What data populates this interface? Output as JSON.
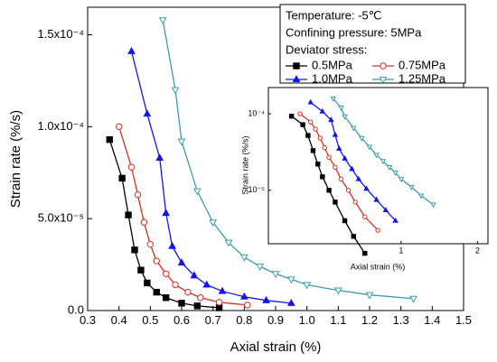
{
  "chart_data": [
    {
      "type": "line",
      "xlabel": "Axial strain (%)",
      "ylabel": "Strain rate (%/s)",
      "xlim": [
        0.3,
        1.5
      ],
      "xticks": [
        0.3,
        0.4,
        0.5,
        0.6,
        0.7,
        0.8,
        0.9,
        {
          "value": 1,
          "label": "1.0"
        },
        1.1,
        1.2,
        1.3,
        1.4,
        1.5
      ],
      "ylim": [
        0,
        0.000165
      ],
      "yticks": [
        {
          "value": 0,
          "label": "0.0"
        },
        {
          "value": 5e-05,
          "label": "5.0x10⁻⁵"
        },
        {
          "value": 0.0001,
          "label": "1.0x10⁻⁴"
        },
        {
          "value": 0.00015,
          "label": "1.5x10⁻⁴"
        }
      ],
      "legend_title": [
        "Temperature: -5℃",
        "Confining pressure: 5MPa",
        "Deviator stress:"
      ],
      "legend": "upper right",
      "series": [
        {
          "name": "0.5MPa",
          "color": "#000000",
          "marker": "square",
          "filled": true,
          "x": [
            0.37,
            0.41,
            0.43,
            0.45,
            0.47,
            0.49,
            0.52,
            0.55,
            0.6,
            0.65,
            0.72
          ],
          "values": [
            9.3e-05,
            7.2e-05,
            5.2e-05,
            3.3e-05,
            2.2e-05,
            1.5e-05,
            1e-05,
            7e-06,
            4e-06,
            2.5e-06,
            1.5e-06
          ]
        },
        {
          "name": "0.75MPa",
          "color": "#d0301e",
          "marker": "circle",
          "filled": false,
          "x": [
            0.4,
            0.44,
            0.46,
            0.48,
            0.5,
            0.52,
            0.55,
            0.58,
            0.62,
            0.66,
            0.72,
            0.81
          ],
          "values": [
            0.0001,
            7.8e-05,
            6.3e-05,
            4.8e-05,
            3.6e-05,
            2.7e-05,
            2e-05,
            1.4e-05,
            1e-05,
            7e-06,
            4.5e-06,
            3e-06
          ]
        },
        {
          "name": "1.0MPa",
          "color": "#1414f0",
          "marker": "triangle",
          "filled": true,
          "x": [
            0.44,
            0.49,
            0.53,
            0.55,
            0.57,
            0.6,
            0.64,
            0.68,
            0.73,
            0.8,
            0.87,
            0.95
          ],
          "values": [
            0.000141,
            0.000107,
            8.3e-05,
            5.3e-05,
            3.5e-05,
            2.6e-05,
            1.9e-05,
            1.4e-05,
            1.05e-05,
            7.5e-06,
            5.5e-06,
            4e-06
          ]
        },
        {
          "name": "1.25MPa",
          "color": "#3a9ea6",
          "marker": "triangle-down",
          "filled": false,
          "x": [
            0.54,
            0.58,
            0.6,
            0.65,
            0.7,
            0.75,
            0.8,
            0.85,
            0.9,
            0.95,
            1.0,
            1.1,
            1.2,
            1.34
          ],
          "values": [
            0.000158,
            0.00012,
            9.2e-05,
            6.5e-05,
            4.8e-05,
            3.7e-05,
            2.9e-05,
            2.4e-05,
            2e-05,
            1.7e-05,
            1.4e-05,
            1.1e-05,
            8.5e-06,
            6.5e-06
          ]
        }
      ]
    },
    {
      "type": "line",
      "xscale": "log",
      "yscale": "log",
      "xlabel": "Axial strain (%)",
      "ylabel": "Strain rate (%/s)",
      "xlim": [
        0.3,
        2.2
      ],
      "xticks": [
        1,
        2
      ],
      "ylim": [
        2e-06,
        0.00022
      ],
      "yticks": [
        {
          "value": 0.0001,
          "label": "10⁻⁴"
        },
        {
          "value": 1e-05,
          "label": "10⁻⁵"
        }
      ]
    }
  ]
}
